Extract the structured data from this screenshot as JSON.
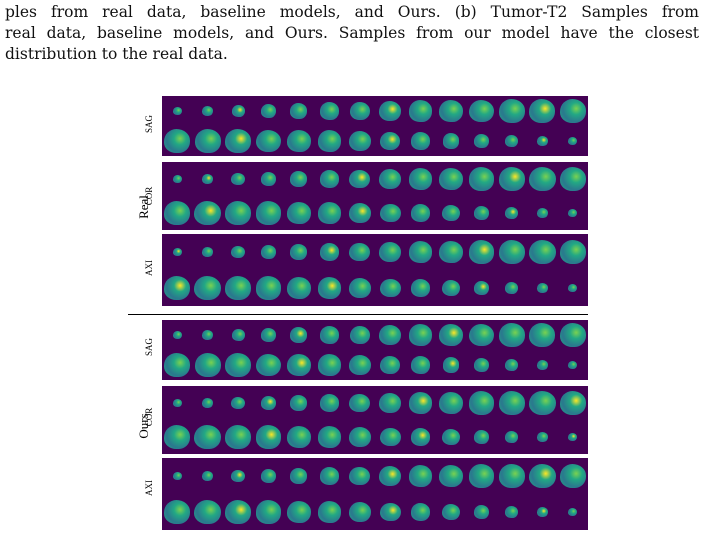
{
  "caption": {
    "line1": "ples from real data, baseline models, and Ours. (b) Tumor-T2 Samples from",
    "line2": "real data, baseline models, and Ours. Samples from our model have the closest",
    "line3": "distribution to the real data."
  },
  "figure": {
    "groups": [
      {
        "label": "Real",
        "views": [
          "SAG",
          "COR",
          "AXI"
        ]
      },
      {
        "label": "Ours",
        "views": [
          "SAG",
          "COR",
          "AXI"
        ]
      }
    ]
  },
  "colors": {
    "background": "#440154",
    "tissue_low": "#2a788e",
    "tissue_mid": "#22a884",
    "tissue_high": "#7ad151",
    "tumor": "#fde725"
  }
}
